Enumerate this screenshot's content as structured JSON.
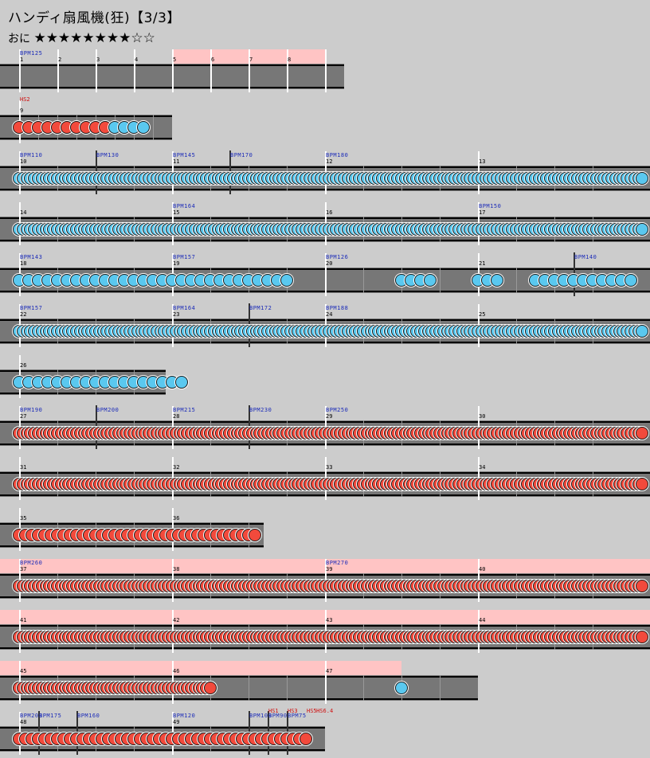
{
  "header": {
    "title": "ハンディ扇風機(狂)【3/3】",
    "difficulty_label": "おに",
    "stars": "★★★★★★★★☆☆",
    "star_level": 8,
    "star_max": 10
  },
  "colors": {
    "background": "#cccccc",
    "lane": "#777777",
    "gogo": "#ffc4c4",
    "don": "#f24a3c",
    "ka": "#5ac8ef",
    "bpm_text": "#1a2ab8",
    "event_text": "#d01010"
  },
  "rows": [
    {
      "measures": [
        "1",
        "2",
        "3",
        "4",
        "5",
        "6",
        "7",
        "8",
        ""
      ],
      "beats": 4,
      "gogo": [
        [
          4,
          8
        ]
      ],
      "bpm": [
        {
          "m": 0,
          "label": "BPM125"
        }
      ],
      "notes": []
    },
    {
      "measures": [
        "9"
      ],
      "beats": 8,
      "events": [
        {
          "m": 0,
          "label": "HS2"
        }
      ],
      "notes": [
        {
          "m": 0,
          "n": 16,
          "p": "ddddddddddkkkk"
        }
      ]
    },
    {
      "measures": [
        "10",
        "11",
        "12",
        "13"
      ],
      "beats": 4,
      "bpm": [
        {
          "m": 0,
          "label": "BPM110"
        },
        {
          "m": 0.5,
          "label": "BPM130"
        },
        {
          "m": 1,
          "label": "BPM145"
        },
        {
          "m": 1.375,
          "label": "BPM170"
        },
        {
          "m": 2,
          "label": "BPM180"
        }
      ],
      "notes": [
        {
          "m": 0,
          "n": 40,
          "p": "k*"
        }
      ]
    },
    {
      "measures": [
        "14",
        "15",
        "16",
        "17"
      ],
      "beats": 4,
      "bpm": [
        {
          "m": 1,
          "label": "BPM164"
        },
        {
          "m": 3,
          "label": "BPM150"
        }
      ],
      "notes": [
        {
          "m": 0,
          "n": 40,
          "p": "k*"
        }
      ]
    },
    {
      "measures": [
        "18",
        "19",
        "20",
        "21"
      ],
      "beats": 4,
      "bpm": [
        {
          "m": 0,
          "label": "BPM143"
        },
        {
          "m": 1,
          "label": "BPM157"
        },
        {
          "m": 2,
          "label": "BPM126"
        },
        {
          "m": 3.625,
          "label": "BPM140"
        }
      ],
      "notes": [
        {
          "m": 0,
          "n": 16,
          "p": "k*",
          "count": 29
        },
        {
          "m": 2.5,
          "n": 16,
          "p": "kkkk"
        },
        {
          "m": 3,
          "n": 16,
          "p": "kkk"
        },
        {
          "m": 3.375,
          "n": 16,
          "p": "kkkkkkkkkkk"
        }
      ]
    },
    {
      "measures": [
        "22",
        "23",
        "24",
        "25"
      ],
      "beats": 4,
      "bpm": [
        {
          "m": 0,
          "label": "BPM157"
        },
        {
          "m": 1,
          "label": "BPM164"
        },
        {
          "m": 1.5,
          "label": "BPM172"
        },
        {
          "m": 2,
          "label": "BPM188"
        }
      ],
      "notes": [
        {
          "m": 0,
          "n": 40,
          "p": "k*"
        }
      ]
    },
    {
      "measures": [
        "26"
      ],
      "beats": 4,
      "span": 0.96,
      "notes": [
        {
          "m": 0,
          "n": 16,
          "p": "kkkkkkkkkkkkkkkkkk"
        }
      ]
    },
    {
      "measures": [
        "27",
        "28",
        "29",
        "30"
      ],
      "beats": 4,
      "bpm": [
        {
          "m": 0,
          "label": "BPM190"
        },
        {
          "m": 0.5,
          "label": "BPM200"
        },
        {
          "m": 1,
          "label": "BPM215"
        },
        {
          "m": 1.5,
          "label": "BPM230"
        },
        {
          "m": 2,
          "label": "BPM250"
        }
      ],
      "notes": [
        {
          "m": 0,
          "n": 40,
          "p": "d*"
        }
      ]
    },
    {
      "measures": [
        "31",
        "32",
        "33",
        "34"
      ],
      "beats": 4,
      "notes": [
        {
          "m": 0,
          "n": 40,
          "p": "d*"
        }
      ]
    },
    {
      "measures": [
        "35",
        "36"
      ],
      "beats": 4,
      "span": 1.6,
      "notes": [
        {
          "m": 0,
          "n": 24,
          "p": "d*",
          "count": 38
        }
      ]
    },
    {
      "measures": [
        "37",
        "38",
        "39",
        "40"
      ],
      "beats": 4,
      "gogo": [
        [
          0,
          4
        ]
      ],
      "bpm": [
        {
          "m": 0,
          "label": "BPM260"
        },
        {
          "m": 2,
          "label": "BPM270"
        }
      ],
      "notes": [
        {
          "m": 0,
          "n": 40,
          "p": "d*"
        }
      ]
    },
    {
      "measures": [
        "41",
        "42",
        "43",
        "44"
      ],
      "beats": 4,
      "gogo": [
        [
          0,
          4
        ]
      ],
      "notes": [
        {
          "m": 0,
          "n": 40,
          "p": "d*"
        }
      ]
    },
    {
      "measures": [
        "45",
        "46",
        "47"
      ],
      "beats": 4,
      "gogo": [
        [
          0,
          2.5
        ]
      ],
      "notes": [
        {
          "m": 0,
          "n": 40,
          "p": "d*",
          "count": 51
        },
        {
          "m": 2.5,
          "n": 40,
          "p": "k"
        }
      ]
    },
    {
      "measures": [
        "48",
        "49"
      ],
      "beats": 4,
      "span": 2,
      "bpm": [
        {
          "m": 0,
          "label": "BPM200"
        },
        {
          "m": 0.125,
          "label": "BPM175"
        },
        {
          "m": 0.375,
          "label": "BPM160"
        },
        {
          "m": 1,
          "label": "BPM120"
        },
        {
          "m": 1.5,
          "label": "BPM100"
        },
        {
          "m": 1.625,
          "label": "BPM90"
        },
        {
          "m": 1.75,
          "label": "BPM75"
        }
      ],
      "events": [
        {
          "m": 1.625,
          "label": "HS1"
        },
        {
          "m": 1.75,
          "label": "HS3"
        },
        {
          "m": 1.875,
          "label": "HS5"
        },
        {
          "m": 1.938,
          "label": "HS6.4"
        }
      ],
      "notes": [
        {
          "m": 0,
          "n": 24,
          "p": "d*",
          "count": 46
        }
      ]
    }
  ]
}
